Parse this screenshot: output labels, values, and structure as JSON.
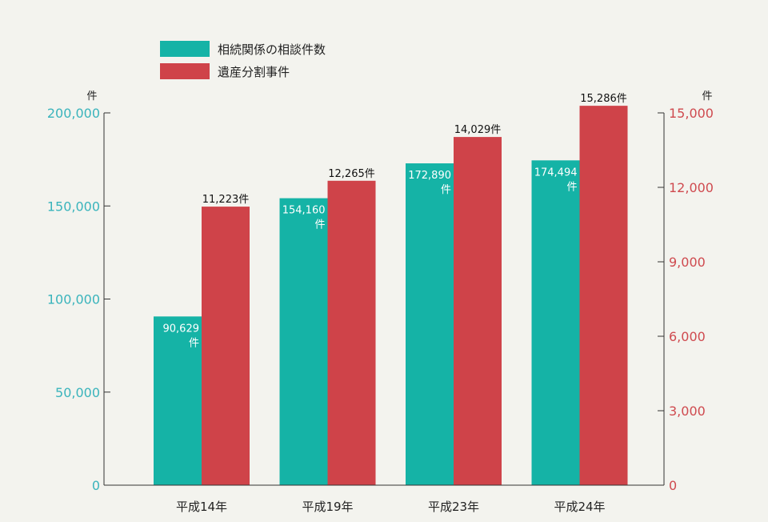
{
  "colors": {
    "teal": "#15b3a6",
    "red": "#cf4349",
    "axis": "#333333",
    "left_tick": "#3ab4bc",
    "right_tick": "#cf4a4f"
  },
  "legend": [
    {
      "label": "相続関係の相談件数",
      "color": "#15b3a6"
    },
    {
      "label": "遺産分割事件",
      "color": "#cf4349"
    }
  ],
  "units": {
    "left": "件",
    "right": "件"
  },
  "chart_data": {
    "type": "bar",
    "categories": [
      "平成14年",
      "平成19年",
      "平成23年",
      "平成24年"
    ],
    "series": [
      {
        "name": "相続関係の相談件数",
        "axis": "left",
        "color": "#15b3a6",
        "values": [
          90629,
          154160,
          172890,
          174494
        ],
        "labels": [
          [
            "90,629",
            "件"
          ],
          [
            "154,160",
            "件"
          ],
          [
            "172,890",
            "件"
          ],
          [
            "174,494",
            "件"
          ]
        ]
      },
      {
        "name": "遺産分割事件",
        "axis": "right",
        "color": "#cf4349",
        "values": [
          11223,
          12265,
          14029,
          15286
        ],
        "labels": [
          "11,223件",
          "12,265件",
          "14,029件",
          "15,286件"
        ]
      }
    ],
    "y_left": {
      "lim": [
        0,
        200000
      ],
      "ticks": [
        0,
        50000,
        100000,
        150000,
        200000
      ],
      "tick_labels": [
        "0",
        "50,000",
        "100,000",
        "150,000",
        "200,000"
      ]
    },
    "y_right": {
      "lim": [
        0,
        15000
      ],
      "ticks": [
        0,
        3000,
        6000,
        9000,
        12000,
        15000
      ],
      "tick_labels": [
        "0",
        "3,000",
        "6,000",
        "9,000",
        "12,000",
        "15,000"
      ]
    },
    "grid": false,
    "legend_position": "top-center"
  }
}
